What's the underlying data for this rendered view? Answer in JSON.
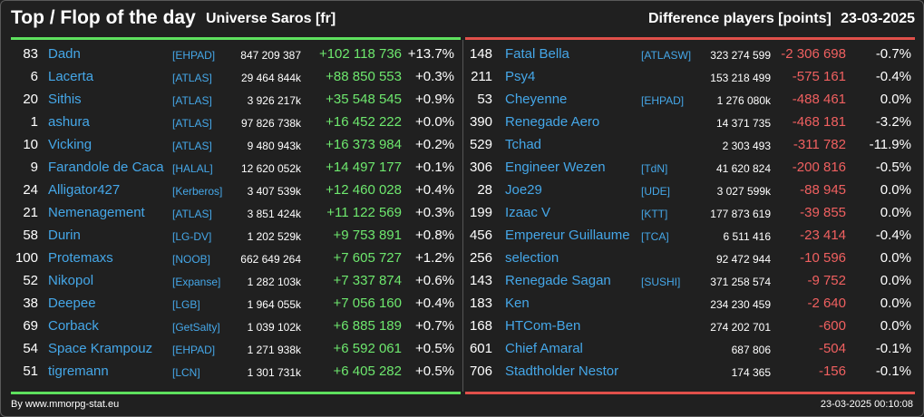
{
  "header": {
    "title": "Top / Flop of the day",
    "universe": "Universe Saros [fr]",
    "difference_label": "Difference players [points]",
    "date": "23-03-2025"
  },
  "colors": {
    "top": "#5ee05e",
    "flop": "#e0504a",
    "name": "#45a7e8"
  },
  "top": [
    {
      "rank": "83",
      "name": "Dadn",
      "alliance": "[EHPAD]",
      "points": "847 209 387",
      "diff": "+102 118 736",
      "pct": "+13.7%"
    },
    {
      "rank": "6",
      "name": "Lacerta",
      "alliance": "[ATLAS]",
      "points": "29 464 844k",
      "diff": "+88 850 553",
      "pct": "+0.3%"
    },
    {
      "rank": "20",
      "name": "Sithis",
      "alliance": "[ATLAS]",
      "points": "3 926 217k",
      "diff": "+35 548 545",
      "pct": "+0.9%"
    },
    {
      "rank": "1",
      "name": "ashura",
      "alliance": "[ATLAS]",
      "points": "97 826 738k",
      "diff": "+16 452 222",
      "pct": "+0.0%"
    },
    {
      "rank": "10",
      "name": "Vicking",
      "alliance": "[ATLAS]",
      "points": "9 480 943k",
      "diff": "+16 373 984",
      "pct": "+0.2%"
    },
    {
      "rank": "9",
      "name": "Farandole de Caca",
      "alliance": "[HALAL]",
      "points": "12 620 052k",
      "diff": "+14 497 177",
      "pct": "+0.1%"
    },
    {
      "rank": "24",
      "name": "Alligator427",
      "alliance": "[Kerberos]",
      "points": "3 407 539k",
      "diff": "+12 460 028",
      "pct": "+0.4%"
    },
    {
      "rank": "21",
      "name": "Nemenagement",
      "alliance": "[ATLAS]",
      "points": "3 851 424k",
      "diff": "+11 122 569",
      "pct": "+0.3%"
    },
    {
      "rank": "58",
      "name": "Durin",
      "alliance": "[LG-DV]",
      "points": "1 202 529k",
      "diff": "+9 753 891",
      "pct": "+0.8%"
    },
    {
      "rank": "100",
      "name": "Protemaxs",
      "alliance": "[NOOB]",
      "points": "662 649 264",
      "diff": "+7 605 727",
      "pct": "+1.2%"
    },
    {
      "rank": "52",
      "name": "Nikopol",
      "alliance": "[Expanse]",
      "points": "1 282 103k",
      "diff": "+7 337 874",
      "pct": "+0.6%"
    },
    {
      "rank": "38",
      "name": "Deepee",
      "alliance": "[LGB]",
      "points": "1 964 055k",
      "diff": "+7 056 160",
      "pct": "+0.4%"
    },
    {
      "rank": "69",
      "name": "Corback",
      "alliance": "[GetSalty]",
      "points": "1 039 102k",
      "diff": "+6 885 189",
      "pct": "+0.7%"
    },
    {
      "rank": "54",
      "name": "Space Krampouz",
      "alliance": "[EHPAD]",
      "points": "1 271 938k",
      "diff": "+6 592 061",
      "pct": "+0.5%"
    },
    {
      "rank": "51",
      "name": "tigremann",
      "alliance": "[LCN]",
      "points": "1 301 731k",
      "diff": "+6 405 282",
      "pct": "+0.5%"
    }
  ],
  "flop": [
    {
      "rank": "148",
      "name": "Fatal Bella",
      "alliance": "[ATLASW]",
      "points": "323 274 599",
      "diff": "-2 306 698",
      "pct": "-0.7%"
    },
    {
      "rank": "211",
      "name": "Psy4",
      "alliance": "",
      "points": "153 218 499",
      "diff": "-575 161",
      "pct": "-0.4%"
    },
    {
      "rank": "53",
      "name": "Cheyenne",
      "alliance": "[EHPAD]",
      "points": "1 276 080k",
      "diff": "-488 461",
      "pct": "0.0%"
    },
    {
      "rank": "390",
      "name": "Renegade Aero",
      "alliance": "",
      "points": "14 371 735",
      "diff": "-468 181",
      "pct": "-3.2%"
    },
    {
      "rank": "529",
      "name": "Tchad",
      "alliance": "",
      "points": "2 303 493",
      "diff": "-311 782",
      "pct": "-11.9%"
    },
    {
      "rank": "306",
      "name": "Engineer Wezen",
      "alliance": "[TdN]",
      "points": "41 620 824",
      "diff": "-200 816",
      "pct": "-0.5%"
    },
    {
      "rank": "28",
      "name": "Joe29",
      "alliance": "[UDE]",
      "points": "3 027 599k",
      "diff": "-88 945",
      "pct": "0.0%"
    },
    {
      "rank": "199",
      "name": "Izaac V",
      "alliance": "[KTT]",
      "points": "177 873 619",
      "diff": "-39 855",
      "pct": "0.0%"
    },
    {
      "rank": "456",
      "name": "Empereur Guillaume",
      "alliance": "[TCA]",
      "points": "6 511 416",
      "diff": "-23 414",
      "pct": "-0.4%"
    },
    {
      "rank": "256",
      "name": "selection",
      "alliance": "",
      "points": "92 472 944",
      "diff": "-10 596",
      "pct": "0.0%"
    },
    {
      "rank": "143",
      "name": "Renegade Sagan",
      "alliance": "[SUSHI]",
      "points": "371 258 574",
      "diff": "-9 752",
      "pct": "0.0%"
    },
    {
      "rank": "183",
      "name": "Ken",
      "alliance": "",
      "points": "234 230 459",
      "diff": "-2 640",
      "pct": "0.0%"
    },
    {
      "rank": "168",
      "name": "HTCom-Ben",
      "alliance": "",
      "points": "274 202 701",
      "diff": "-600",
      "pct": "0.0%"
    },
    {
      "rank": "601",
      "name": "Chief Amaral",
      "alliance": "",
      "points": "687 806",
      "diff": "-504",
      "pct": "-0.1%"
    },
    {
      "rank": "706",
      "name": "Stadtholder Nestor",
      "alliance": "",
      "points": "174 365",
      "diff": "-156",
      "pct": "-0.1%"
    }
  ],
  "footer": {
    "source": "By www.mmorpg-stat.eu",
    "timestamp": "23-03-2025 00:10:08"
  }
}
